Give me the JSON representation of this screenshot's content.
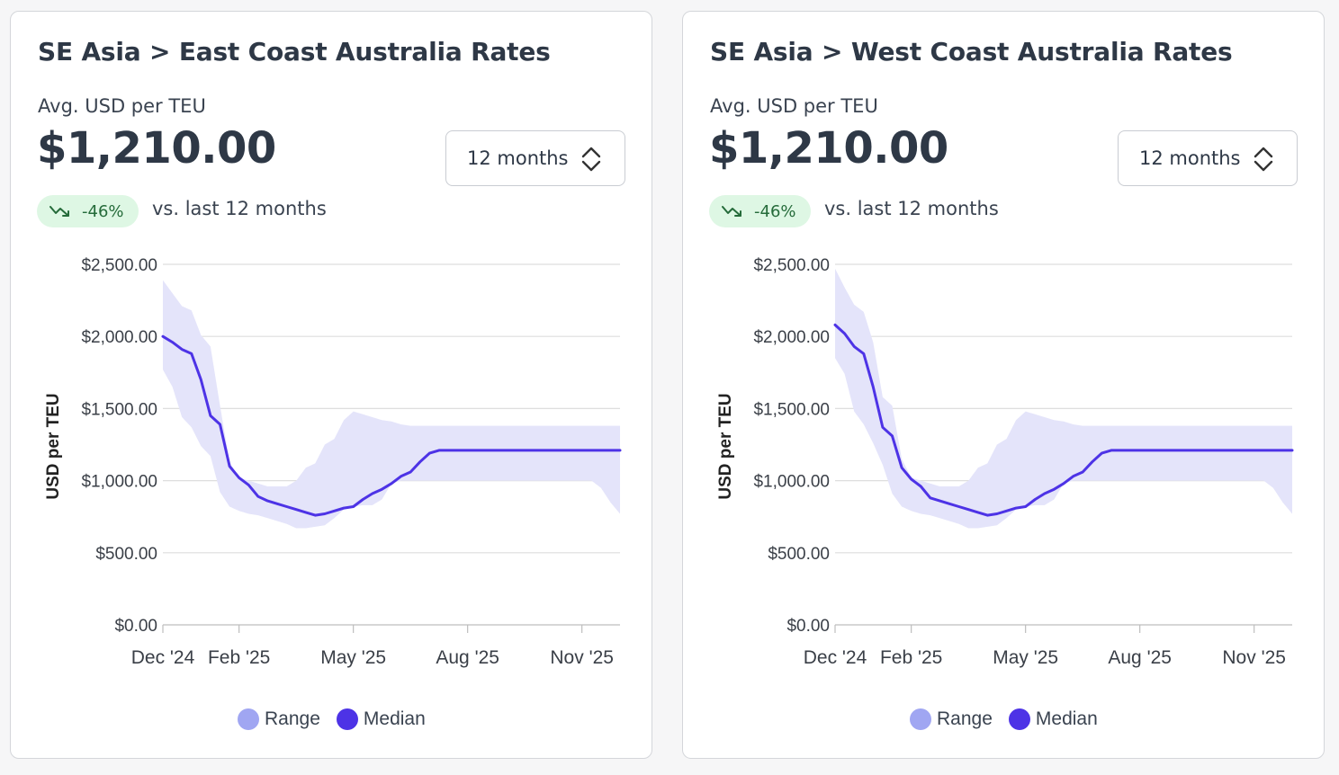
{
  "colors": {
    "median": "#4d33e6",
    "range_fill": "#e4e4fa",
    "range_dot": "#a0a6f2",
    "grid": "#dedede",
    "badge_bg": "#def7e4",
    "badge_text": "#256b3a"
  },
  "cards": [
    {
      "title": "SE Asia > East Coast Australia Rates",
      "subtitle": "Avg. USD per TEU",
      "value": "$1,210.00",
      "select_value": "12 months",
      "select_icon": "chevron-up-down-icon",
      "change": "-46%",
      "change_icon": "trend-down-icon",
      "comparison": "vs. last 12 months",
      "legend": [
        {
          "label": "Range"
        },
        {
          "label": "Median"
        }
      ]
    },
    {
      "title": "SE Asia > West Coast Australia Rates",
      "subtitle": "Avg. USD per TEU",
      "value": "$1,210.00",
      "select_value": "12 months",
      "select_icon": "chevron-up-down-icon",
      "change": "-46%",
      "change_icon": "trend-down-icon",
      "comparison": "vs. last 12 months",
      "legend": [
        {
          "label": "Range"
        },
        {
          "label": "Median"
        }
      ]
    }
  ],
  "chart_data": [
    {
      "type": "area",
      "title": "SE Asia > East Coast Australia Rates",
      "xlabel": "",
      "ylabel": "USD per TEU",
      "ylim": [
        0,
        2500
      ],
      "y_ticks": [
        "$0.00",
        "$500.00",
        "$1,000.00",
        "$1,500.00",
        "$2,000.00",
        "$2,500.00"
      ],
      "x_ticks": [
        "Dec '24",
        "Feb '25",
        "May '25",
        "Aug '25",
        "Nov '25"
      ],
      "xlim": [
        0,
        12
      ],
      "x_tick_positions": [
        0,
        2,
        5,
        8,
        11
      ],
      "grid": true,
      "legend_position": "bottom",
      "x": [
        0,
        0.25,
        0.5,
        0.75,
        1,
        1.25,
        1.5,
        1.75,
        2,
        2.25,
        2.5,
        2.75,
        3,
        3.25,
        3.5,
        3.75,
        4,
        4.25,
        4.5,
        4.75,
        5,
        5.25,
        5.5,
        5.75,
        6,
        6.25,
        6.5,
        6.75,
        7,
        7.25,
        7.5,
        7.75,
        8,
        8.25,
        8.5,
        8.75,
        9,
        9.25,
        9.5,
        9.75,
        10,
        10.25,
        10.5,
        10.75,
        11,
        11.25,
        11.5,
        11.75,
        12
      ],
      "series": [
        {
          "name": "Median",
          "values": [
            2000,
            1960,
            1910,
            1880,
            1700,
            1450,
            1390,
            1100,
            1020,
            970,
            890,
            860,
            840,
            820,
            800,
            780,
            760,
            770,
            790,
            810,
            820,
            870,
            910,
            940,
            980,
            1030,
            1060,
            1130,
            1190,
            1210,
            1210,
            1210,
            1210,
            1210,
            1210,
            1210,
            1210,
            1210,
            1210,
            1210,
            1210,
            1210,
            1210,
            1210,
            1210,
            1210,
            1210,
            1210,
            1210
          ]
        },
        {
          "name": "Range",
          "lower": [
            1770,
            1650,
            1440,
            1370,
            1240,
            1170,
            920,
            820,
            790,
            770,
            760,
            740,
            720,
            700,
            670,
            670,
            680,
            690,
            740,
            800,
            820,
            830,
            830,
            870,
            980,
            1000,
            1000,
            1000,
            1000,
            1000,
            1000,
            1000,
            1000,
            1000,
            1000,
            1000,
            1000,
            1000,
            1000,
            1000,
            1000,
            1000,
            1000,
            1000,
            1000,
            1000,
            950,
            850,
            770
          ],
          "upper": [
            2390,
            2300,
            2210,
            2180,
            2010,
            1930,
            1520,
            1130,
            1020,
            1000,
            980,
            960,
            960,
            960,
            1000,
            1090,
            1120,
            1250,
            1290,
            1420,
            1480,
            1460,
            1440,
            1420,
            1410,
            1390,
            1380,
            1380,
            1380,
            1380,
            1380,
            1380,
            1380,
            1380,
            1380,
            1380,
            1380,
            1380,
            1380,
            1380,
            1380,
            1380,
            1380,
            1380,
            1380,
            1380,
            1380,
            1380,
            1380
          ]
        }
      ]
    },
    {
      "type": "area",
      "title": "SE Asia > West Coast Australia Rates",
      "xlabel": "",
      "ylabel": "USD per TEU",
      "ylim": [
        0,
        2500
      ],
      "y_ticks": [
        "$0.00",
        "$500.00",
        "$1,000.00",
        "$1,500.00",
        "$2,000.00",
        "$2,500.00"
      ],
      "x_ticks": [
        "Dec '24",
        "Feb '25",
        "May '25",
        "Aug '25",
        "Nov '25"
      ],
      "xlim": [
        0,
        12
      ],
      "x_tick_positions": [
        0,
        2,
        5,
        8,
        11
      ],
      "grid": true,
      "legend_position": "bottom",
      "x": [
        0,
        0.25,
        0.5,
        0.75,
        1,
        1.25,
        1.5,
        1.75,
        2,
        2.25,
        2.5,
        2.75,
        3,
        3.25,
        3.5,
        3.75,
        4,
        4.25,
        4.5,
        4.75,
        5,
        5.25,
        5.5,
        5.75,
        6,
        6.25,
        6.5,
        6.75,
        7,
        7.25,
        7.5,
        7.75,
        8,
        8.25,
        8.5,
        8.75,
        9,
        9.25,
        9.5,
        9.75,
        10,
        10.25,
        10.5,
        10.75,
        11,
        11.25,
        11.5,
        11.75,
        12
      ],
      "series": [
        {
          "name": "Median",
          "values": [
            2080,
            2020,
            1930,
            1880,
            1650,
            1370,
            1310,
            1090,
            1010,
            960,
            880,
            860,
            840,
            820,
            800,
            780,
            760,
            770,
            790,
            810,
            820,
            870,
            910,
            940,
            980,
            1030,
            1060,
            1130,
            1190,
            1210,
            1210,
            1210,
            1210,
            1210,
            1210,
            1210,
            1210,
            1210,
            1210,
            1210,
            1210,
            1210,
            1210,
            1210,
            1210,
            1210,
            1210,
            1210,
            1210
          ]
        },
        {
          "name": "Range",
          "lower": [
            1850,
            1740,
            1480,
            1390,
            1260,
            1110,
            910,
            820,
            790,
            770,
            760,
            740,
            720,
            700,
            670,
            670,
            680,
            690,
            740,
            800,
            820,
            830,
            830,
            870,
            980,
            1000,
            1000,
            1000,
            1000,
            1000,
            1000,
            1000,
            1000,
            1000,
            1000,
            1000,
            1000,
            1000,
            1000,
            1000,
            1000,
            1000,
            1000,
            1000,
            1000,
            1000,
            950,
            850,
            770
          ],
          "upper": [
            2470,
            2340,
            2220,
            2170,
            1960,
            1580,
            1520,
            1150,
            1020,
            1000,
            980,
            960,
            960,
            960,
            1000,
            1090,
            1120,
            1250,
            1290,
            1420,
            1480,
            1460,
            1440,
            1420,
            1410,
            1390,
            1380,
            1380,
            1380,
            1380,
            1380,
            1380,
            1380,
            1380,
            1380,
            1380,
            1380,
            1380,
            1380,
            1380,
            1380,
            1380,
            1380,
            1380,
            1380,
            1380,
            1380,
            1380,
            1380
          ]
        }
      ]
    }
  ]
}
